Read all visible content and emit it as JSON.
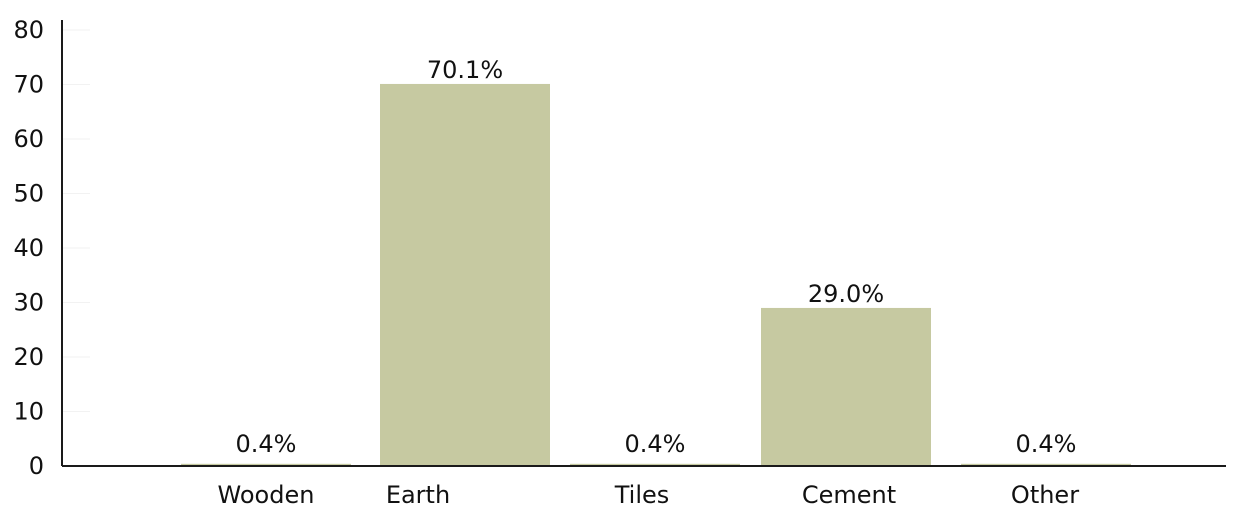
{
  "chart_data": {
    "type": "bar",
    "categories": [
      "Wooden",
      "Earth",
      "Tiles",
      "Cement",
      "Other"
    ],
    "values": [
      0.4,
      70.1,
      0.4,
      29.0,
      0.4
    ],
    "data_labels": [
      "0.4%",
      "70.1%",
      "0.4%",
      "29.0%",
      "0.4%"
    ],
    "title": "",
    "xlabel": "",
    "ylabel": "",
    "ylim": [
      0,
      80
    ],
    "yticks": [
      0,
      10,
      20,
      30,
      40,
      50,
      60,
      70,
      80
    ],
    "grid": false,
    "bar_color": "#c6c9a1",
    "axis_color": "#1a1a1a"
  }
}
